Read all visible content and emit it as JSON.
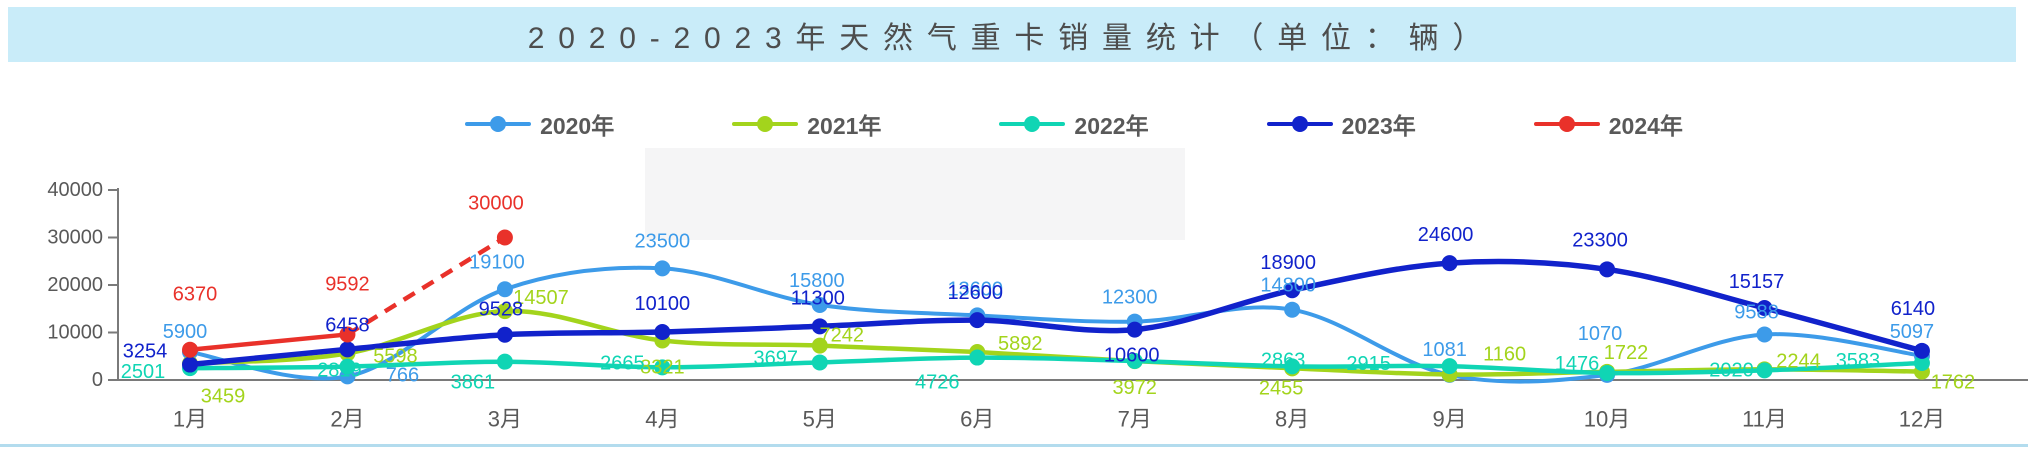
{
  "title": {
    "text": "2020-2023年天然气重卡销量统计（单位：辆）"
  },
  "colors": {
    "titlebar_bg": "#c9ecf9",
    "title_text": "#4d4d4d",
    "axis": "#7a7a7a",
    "axis_label": "#595959",
    "legend_text": "#595959",
    "watermark": "#f5f5f6",
    "bottom_border": "#b3dcee"
  },
  "chart_data": {
    "type": "line",
    "title": "2020-2023年天然气重卡销量统计（单位：辆）",
    "categories": [
      "1月",
      "2月",
      "3月",
      "4月",
      "5月",
      "6月",
      "7月",
      "8月",
      "9月",
      "10月",
      "11月",
      "12月"
    ],
    "ylim": [
      0,
      40000
    ],
    "yticks": [
      0,
      10000,
      20000,
      30000,
      40000
    ],
    "grid": false,
    "legend_position": "top",
    "series": [
      {
        "name": "2020年",
        "color": "#3d9be9",
        "line_width": 4,
        "smooth": true,
        "values": [
          5900,
          766,
          19100,
          23500,
          15800,
          13600,
          12300,
          14800,
          1081,
          1070,
          9588,
          5097
        ],
        "labels": [
          "5900",
          "766",
          "19100",
          "23500",
          "15800",
          "13600",
          "12300",
          "14800",
          "1081",
          "1070",
          "9588",
          "5097"
        ],
        "label_offsets": [
          [
            -5,
            -20
          ],
          [
            55,
            -1
          ],
          [
            -8,
            -27
          ],
          [
            0,
            -27
          ],
          [
            -3,
            -24
          ],
          [
            -2,
            -26
          ],
          [
            -5,
            -24
          ],
          [
            -4,
            -24
          ],
          [
            -5,
            -25
          ],
          [
            -7,
            -41
          ],
          [
            -8,
            -22
          ],
          [
            -10,
            -24
          ]
        ]
      },
      {
        "name": "2021年",
        "color": "#a3d41c",
        "line_width": 4.5,
        "smooth": true,
        "values": [
          3459,
          5598,
          14507,
          8321,
          7242,
          5892,
          3972,
          2455,
          1160,
          1722,
          2244,
          1762
        ],
        "labels": [
          "3459",
          "5598",
          "14507",
          "8321",
          "7242",
          "5892",
          "3972",
          "2455",
          "1160",
          "1722",
          "2244",
          "1762"
        ],
        "label_offsets": [
          [
            33,
            33
          ],
          [
            48,
            3
          ],
          [
            36,
            -13
          ],
          [
            0,
            27
          ],
          [
            22,
            -10
          ],
          [
            43,
            -8
          ],
          [
            0,
            27
          ],
          [
            -11,
            20
          ],
          [
            55,
            -20
          ],
          [
            19,
            -19
          ],
          [
            34,
            -8
          ],
          [
            31,
            11
          ]
        ]
      },
      {
        "name": "2022年",
        "color": "#10d5b4",
        "line_width": 4.5,
        "smooth": true,
        "values": [
          2501,
          2819,
          3861,
          2665,
          3697,
          4726,
          4000,
          2863,
          2915,
          1476,
          2020,
          3583
        ],
        "labels": [
          "2501",
          "2819",
          "3861",
          "2665",
          "3697",
          "4726",
          "",
          "2863",
          "2915",
          "1476",
          "2020",
          "3583"
        ],
        "label_offsets": [
          [
            -47,
            4
          ],
          [
            -8,
            4
          ],
          [
            -32,
            21
          ],
          [
            -40,
            -4
          ],
          [
            -44,
            -4
          ],
          [
            -40,
            25
          ],
          [
            0,
            0
          ],
          [
            -9,
            -6
          ],
          [
            -81,
            -2
          ],
          [
            -30,
            -9
          ],
          [
            -33,
            0
          ],
          [
            -64,
            -2
          ]
        ]
      },
      {
        "name": "2023年",
        "color": "#1122cb",
        "line_width": 5.5,
        "smooth": true,
        "values": [
          3254,
          6458,
          9528,
          10100,
          11300,
          12600,
          10600,
          18900,
          24600,
          23300,
          15157,
          6140
        ],
        "labels": [
          "3254",
          "6458",
          "9528",
          "10100",
          "11300",
          "12600",
          "10600",
          "18900",
          "24600",
          "23300",
          "15157",
          "6140"
        ],
        "label_offsets": [
          [
            -45,
            -13
          ],
          [
            0,
            -24
          ],
          [
            -4,
            -25
          ],
          [
            0,
            -28
          ],
          [
            -2,
            -28
          ],
          [
            -2,
            -27
          ],
          [
            -3,
            26
          ],
          [
            -4,
            -27
          ],
          [
            -4,
            -28
          ],
          [
            -7,
            -29
          ],
          [
            -8,
            -26
          ],
          [
            -9,
            -42
          ]
        ]
      },
      {
        "name": "2024年",
        "color": "#e9312a",
        "line_width": 4.5,
        "smooth": false,
        "dashed_from_index": 1,
        "values": [
          6370,
          9592,
          30000
        ],
        "labels": [
          "6370",
          "9592",
          "30000"
        ],
        "label_offsets": [
          [
            5,
            -55
          ],
          [
            0,
            -50
          ],
          [
            -9,
            -34
          ]
        ]
      }
    ]
  }
}
